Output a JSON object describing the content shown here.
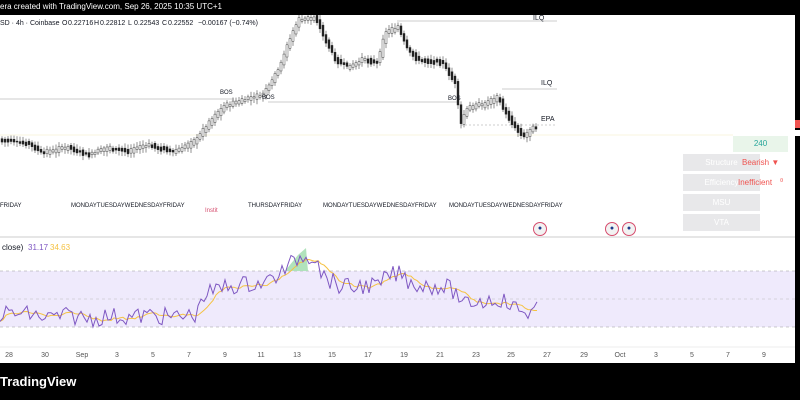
{
  "header": {
    "text": "era created with TradingView.com, Sep 26, 2025 10:35 UTC+1"
  },
  "symbol": {
    "text": "SD · 4h · Coinbase"
  },
  "ohlc": {
    "open_label": "O",
    "open": "0.22716",
    "high_label": "H",
    "high": "0.22812",
    "low_label": "L",
    "low": "0.22543",
    "close_label": "C",
    "close": "0.22552",
    "change": "−0.00167 (−0.74%)"
  },
  "annotations": {
    "bos_1": "BOS",
    "bos_2": "BOS",
    "bos_3": "BOS",
    "ilq": "ILQ",
    "epa": "EPA",
    "top_label": "ILQ",
    "sessions_marker": "Instit"
  },
  "price_tag": "240",
  "panel": {
    "buttons": [
      "Structure",
      "Efficiency",
      "MSU",
      "VTA"
    ],
    "structure_value": "Bearish ▼",
    "efficiency_value": "Inefficient",
    "efficiency_icon": "¤"
  },
  "day_labels": [
    "FRIDAY",
    "MONDAYTUESDAYWEDNESDAYFRIDAY",
    "THURSDAYFRIDAY",
    "MONDAYTUESDAYWEDNESDAYFRIDAY",
    "MONDAYTUESDAYWEDNESDAYFRIDAY"
  ],
  "rsi": {
    "label": "close)",
    "value": "31.17",
    "ma": "34.63"
  },
  "xaxis": {
    "ticks": [
      "28",
      "30",
      "Sep",
      "3",
      "5",
      "7",
      "9",
      "11",
      "13",
      "15",
      "17",
      "19",
      "21",
      "23",
      "25",
      "27",
      "29",
      "Oct",
      "3",
      "5",
      "7",
      "9"
    ]
  },
  "brand": "TradingView",
  "colors": {
    "up": "#26a69a",
    "down": "#222222",
    "rsi_line": "#7e57c2",
    "rsi_ma": "#f5c242",
    "bearish": "#ef5350",
    "panel_button": "#e8e8ea",
    "background": "#000000"
  }
}
